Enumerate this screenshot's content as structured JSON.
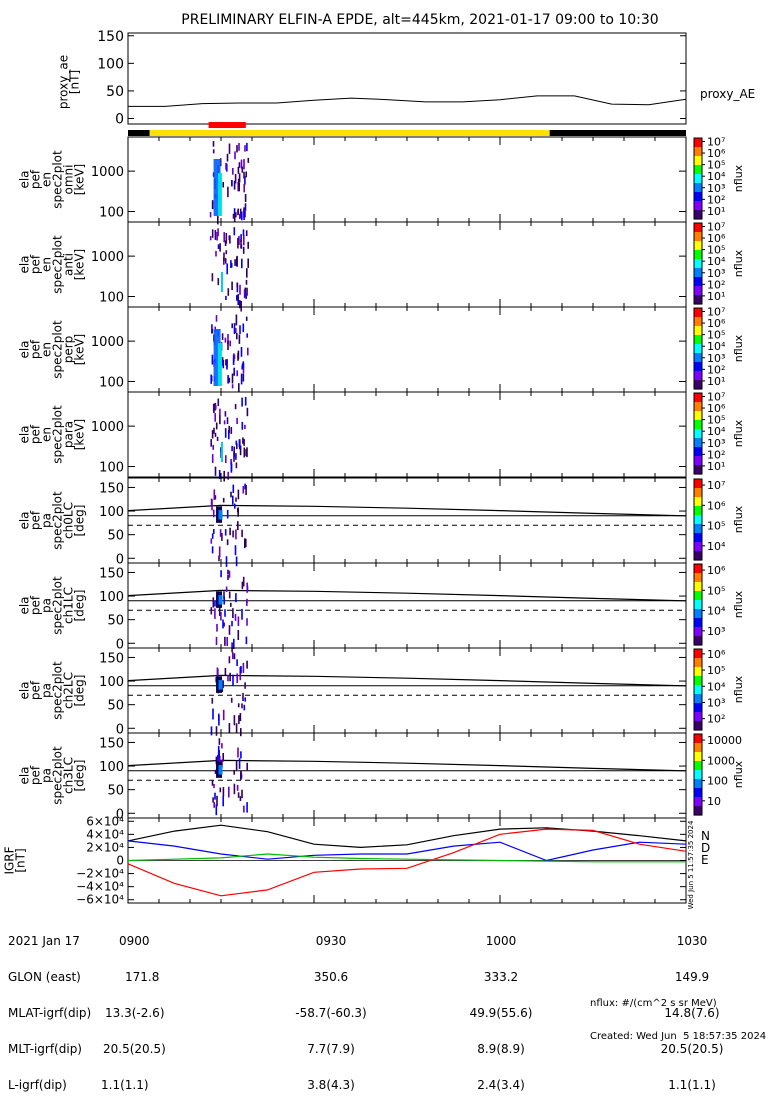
{
  "chart_data": {
    "title": "PRELIMINARY ELFIN-A EPDE, alt=445km, 2021-01-17 09:00 to 10:30",
    "type": "multi-panel spectrogram",
    "time_range": [
      "09:00",
      "10:30"
    ],
    "ae_panel": {
      "ylabel": "proxy_ae [nT]",
      "legend": "proxy_AE",
      "yticks": [
        "150",
        "100",
        "50",
        "0"
      ],
      "ylim": [
        -10,
        155
      ],
      "x_min": [
        0,
        6,
        12,
        18,
        24,
        30,
        36,
        42,
        48,
        54,
        60,
        66,
        72,
        78,
        84,
        90
      ],
      "values": [
        22,
        22,
        27,
        28,
        28,
        33,
        37,
        34,
        30,
        30,
        34,
        41,
        41,
        26,
        25,
        35
      ]
    },
    "coverage_bar": {
      "black": [
        [
          0,
          3.5
        ],
        [
          68,
          90
        ]
      ],
      "yellow": [
        [
          3.5,
          68
        ]
      ],
      "red": [
        [
          13,
          19
        ]
      ]
    },
    "energy_panels": [
      {
        "ylabel": [
          "ela",
          "pef",
          "en",
          "spec2plot",
          "omni",
          "[keV]"
        ],
        "yticks": [
          "1000",
          "100"
        ],
        "zlabel": "nflux",
        "zticks": [
          "10^7",
          "10^6",
          "10^5",
          "10^4",
          "10^3",
          "10^2",
          "10^1"
        ]
      },
      {
        "ylabel": [
          "ela",
          "pef",
          "en",
          "spec2plot",
          "anti",
          "[keV]"
        ],
        "yticks": [
          "1000",
          "100"
        ],
        "zlabel": "nflux",
        "zticks": [
          "10^7",
          "10^6",
          "10^5",
          "10^4",
          "10^3",
          "10^2",
          "10^1"
        ]
      },
      {
        "ylabel": [
          "ela",
          "pef",
          "en",
          "spec2plot",
          "perp",
          "[keV]"
        ],
        "yticks": [
          "1000",
          "100"
        ],
        "zlabel": "nflux",
        "zticks": [
          "10^7",
          "10^6",
          "10^5",
          "10^4",
          "10^3",
          "10^2",
          "10^1"
        ]
      },
      {
        "ylabel": [
          "ela",
          "pef",
          "en",
          "spec2plot",
          "para",
          "[keV]"
        ],
        "yticks": [
          "1000",
          "100"
        ],
        "zlabel": "nflux",
        "zticks": [
          "10^7",
          "10^6",
          "10^5",
          "10^4",
          "10^3",
          "10^2",
          "10^1"
        ]
      }
    ],
    "pitch_panels": [
      {
        "ylabel": [
          "ela",
          "pef",
          "pa",
          "spec2plot",
          "ch0LC",
          "[deg]"
        ],
        "yticks": [
          "150",
          "100",
          "50",
          "0"
        ],
        "zlabel": "nflux",
        "zticks": [
          "10^7",
          "10^6",
          "10^5",
          "10^4"
        ]
      },
      {
        "ylabel": [
          "ela",
          "pef",
          "pa",
          "spec2plot",
          "ch1LC",
          "[deg]"
        ],
        "yticks": [
          "150",
          "100",
          "50",
          "0"
        ],
        "zlabel": "nflux",
        "zticks": [
          "10^6",
          "10^5",
          "10^4",
          "10^3"
        ]
      },
      {
        "ylabel": [
          "ela",
          "pef",
          "pa",
          "spec2plot",
          "ch2LC",
          "[deg]"
        ],
        "yticks": [
          "150",
          "100",
          "50",
          "0"
        ],
        "zlabel": "nflux",
        "zticks": [
          "10^6",
          "10^5",
          "10^4",
          "10^3",
          "10^2"
        ]
      },
      {
        "ylabel": [
          "ela",
          "pef",
          "pa",
          "spec2plot",
          "ch3LC",
          "[deg]"
        ],
        "yticks": [
          "150",
          "100",
          "50",
          "0"
        ],
        "zlabel": "nflux",
        "zticks": [
          "10000",
          "1000",
          "100",
          "10"
        ]
      }
    ],
    "pitch_lines": {
      "lc_min": [
        0,
        15,
        30,
        45,
        60,
        75,
        90
      ],
      "loss_cone_deg": [
        101,
        112,
        110,
        106,
        101,
        95,
        90
      ],
      "reference_deg": [
        90,
        70
      ]
    },
    "igrf_panel": {
      "ylabel": "IGRF [nT]",
      "yticks": [
        "6×10⁴",
        "4×10⁴",
        "2×10⁴",
        "0",
        "−2×10⁴",
        "−4×10⁴",
        "−6×10⁴"
      ],
      "ylim": [
        -65000,
        65000
      ],
      "labels": [
        "N",
        "D",
        "E"
      ],
      "colors": {
        "total": "#000000",
        "N": "#0000ff",
        "D": "#ff0000",
        "E": "#00bb00"
      },
      "x_min": [
        0,
        7.5,
        15,
        22.5,
        30,
        37.5,
        45,
        52.5,
        60,
        67.5,
        75,
        82.5,
        90
      ],
      "total": [
        30000,
        45000,
        54000,
        44000,
        25000,
        20000,
        24000,
        38000,
        48000,
        50000,
        45000,
        38000,
        30000
      ],
      "N": [
        30000,
        22000,
        10000,
        2000,
        8000,
        10000,
        10000,
        22000,
        28000,
        0,
        16000,
        28000,
        25000
      ],
      "D": [
        -5000,
        -35000,
        -54000,
        -45000,
        -18000,
        -13000,
        -12000,
        12000,
        40000,
        48000,
        46000,
        25000,
        14000
      ],
      "E": [
        0,
        2000,
        4000,
        10000,
        5000,
        3000,
        2000,
        1000,
        0,
        -1000,
        -2000,
        -2000,
        -2000
      ]
    },
    "timestamp_vertical": "Wed Jun  5 11:57:35 2024"
  },
  "footer": {
    "row_labels": [
      "2021 Jan 17",
      "GLON (east)",
      "MLAT-igrf(dip)",
      "MLT-igrf(dip)",
      "L-igrf(dip)"
    ],
    "columns": [
      {
        "time": "0900",
        "glon": "171.8",
        "mlat": "13.3(-2.6)",
        "mlt": "20.5(20.5)",
        "l": "1.1(1.1)"
      },
      {
        "time": "0930",
        "glon": "350.6",
        "mlat": "-58.7(-60.3)",
        "mlt": "7.7(7.9)",
        "l": "3.8(4.3)"
      },
      {
        "time": "1000",
        "glon": "333.2",
        "mlat": "49.9(55.6)",
        "mlt": "8.9(8.9)",
        "l": "2.4(3.4)"
      },
      {
        "time": "1030",
        "glon": "149.9",
        "mlat": "14.8(7.6)",
        "mlt": "20.5(20.5)",
        "l": "1.1(1.1)"
      }
    ],
    "nflux_units": "nflux: #/(cm^2 s sr MeV)",
    "created": "Created: Wed Jun  5 18:57:35 2024"
  }
}
